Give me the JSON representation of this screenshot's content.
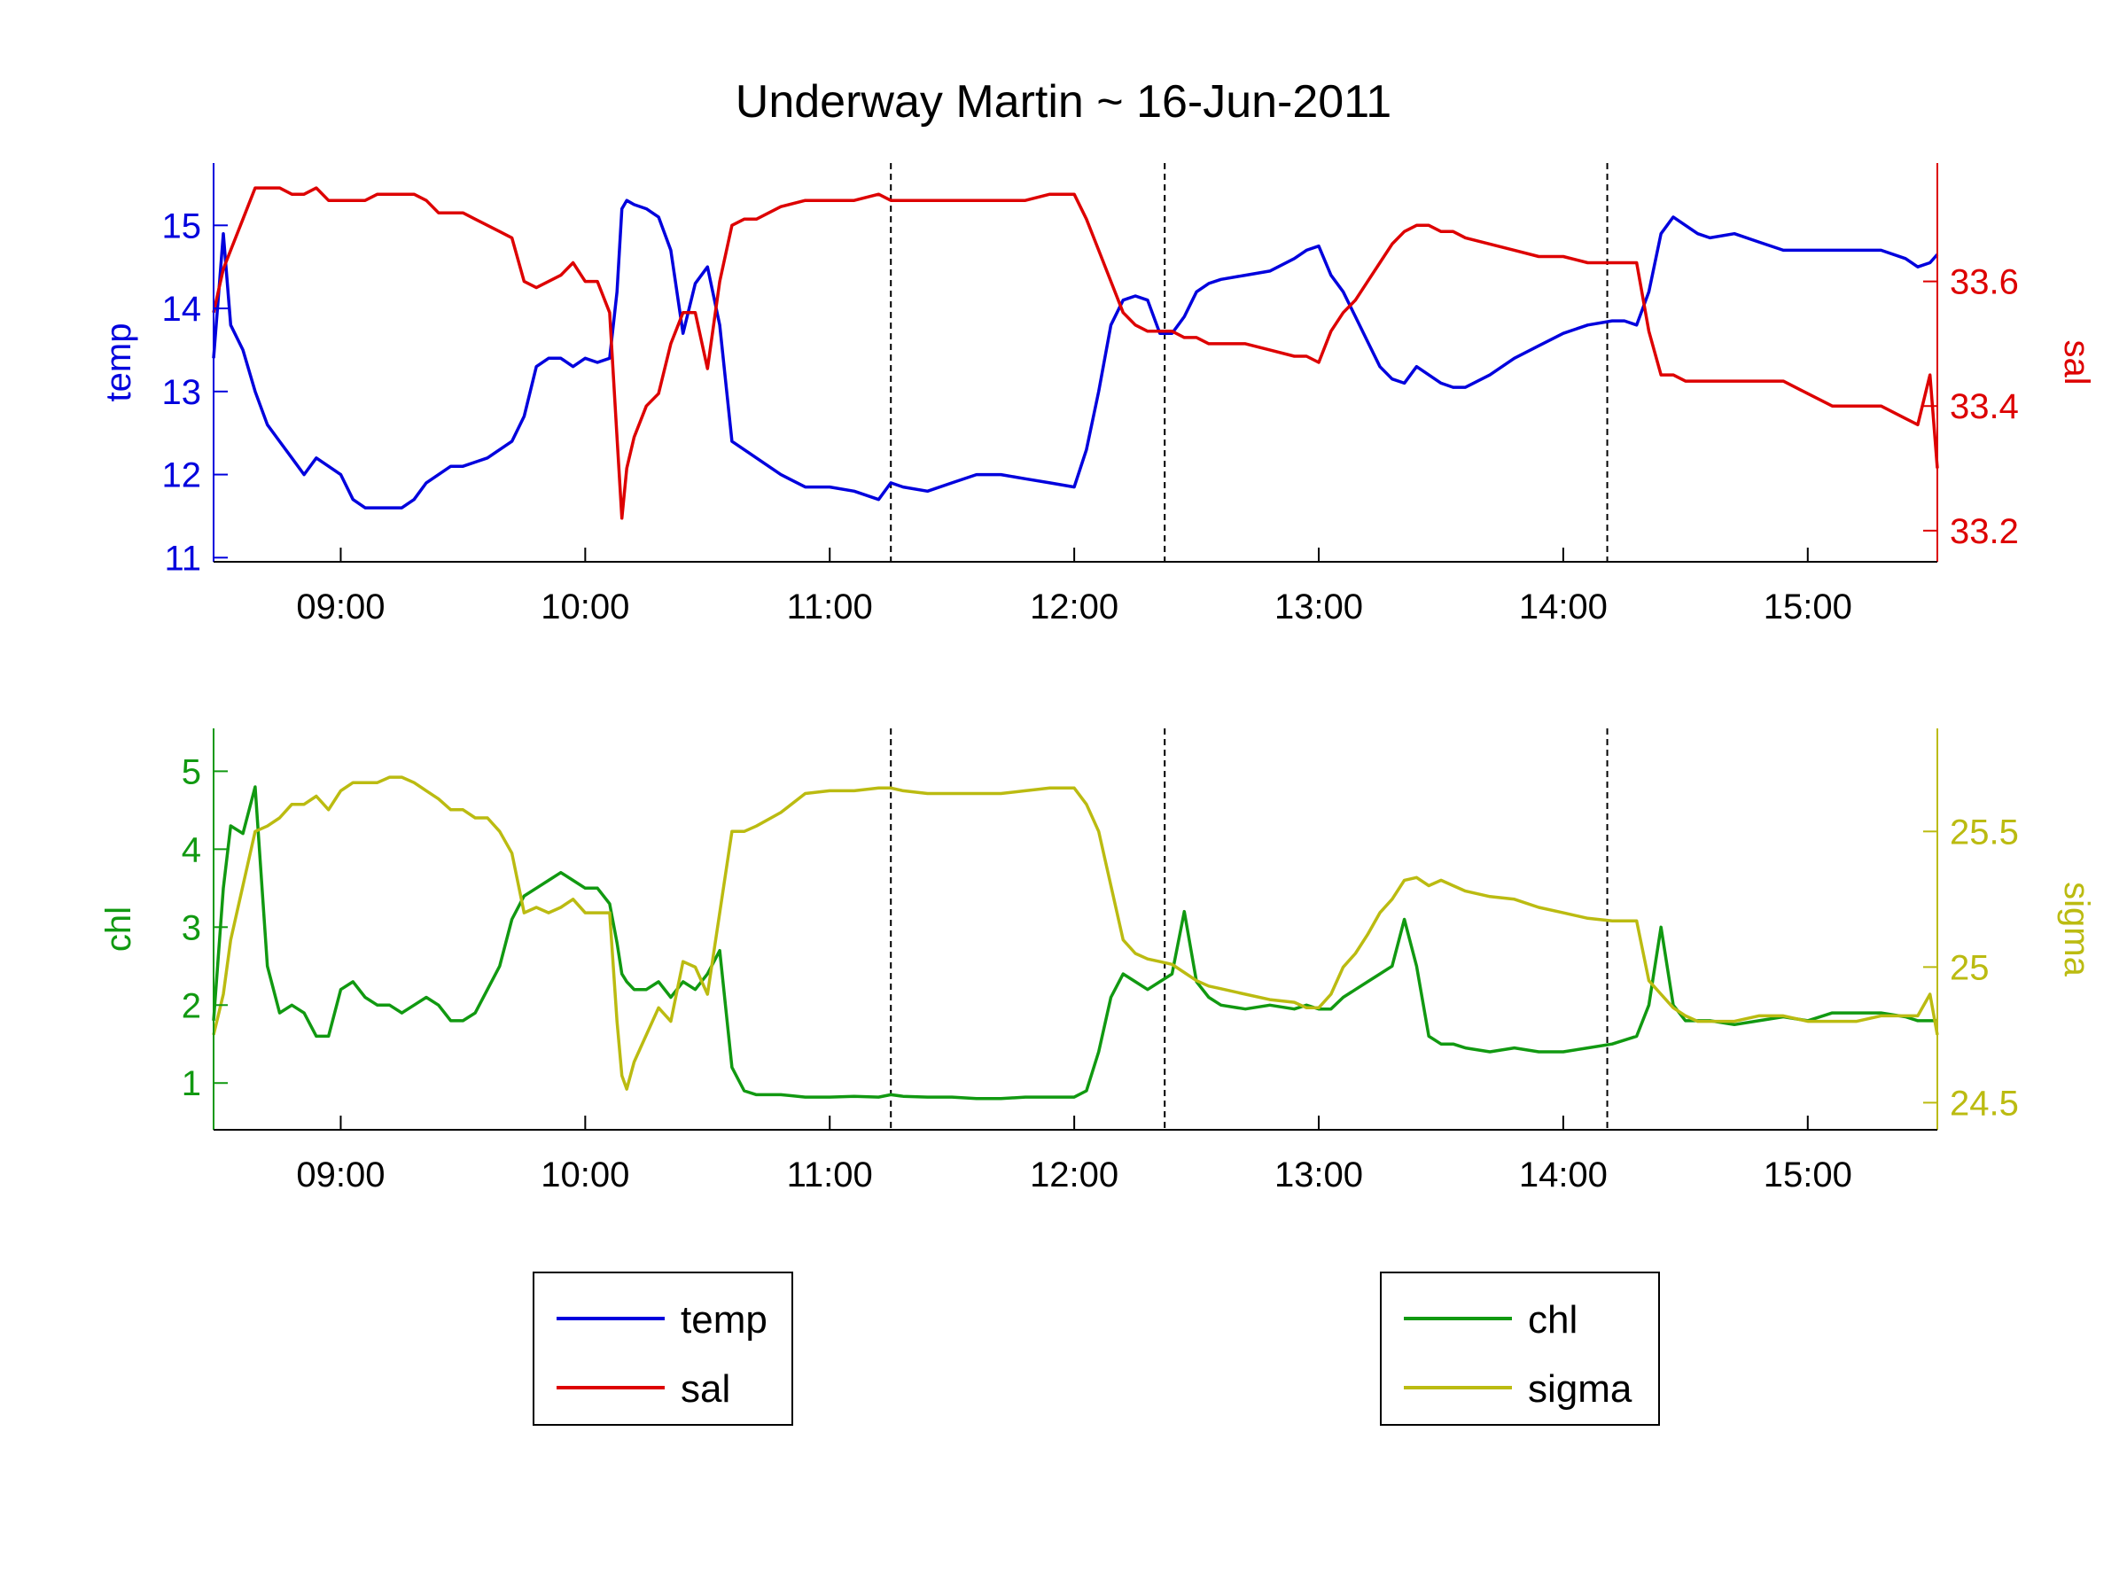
{
  "figure": {
    "title": "Underway Martin ~ 16-Jun-2011"
  },
  "chart_data": [
    {
      "type": "line",
      "panel": "top",
      "xlabel": "",
      "x_ticks": [
        "09:00",
        "10:00",
        "11:00",
        "12:00",
        "13:00",
        "14:00",
        "15:00"
      ],
      "x_tick_hours": [
        9,
        10,
        11,
        12,
        13,
        14,
        15
      ],
      "xlim": [
        8.48,
        15.53
      ],
      "station_lines": [
        11.25,
        12.37,
        14.18
      ],
      "grid": false,
      "left_axis": {
        "label": "temp",
        "color": "#0000dd",
        "ylim": [
          10.95,
          15.75
        ],
        "ticks": [
          11,
          12,
          13,
          14,
          15
        ]
      },
      "right_axis": {
        "label": "sal",
        "color": "#dd0000",
        "ylim": [
          33.15,
          33.79
        ],
        "ticks": [
          33.2,
          33.4,
          33.6
        ],
        "tick_labels": [
          "33.2",
          "33.4",
          "33.6"
        ]
      },
      "x": [
        8.48,
        8.52,
        8.55,
        8.6,
        8.65,
        8.7,
        8.75,
        8.8,
        8.85,
        8.9,
        8.95,
        9.0,
        9.05,
        9.1,
        9.15,
        9.2,
        9.25,
        9.3,
        9.35,
        9.4,
        9.45,
        9.5,
        9.55,
        9.6,
        9.65,
        9.7,
        9.75,
        9.8,
        9.85,
        9.9,
        9.95,
        10.0,
        10.05,
        10.1,
        10.13,
        10.15,
        10.17,
        10.2,
        10.25,
        10.3,
        10.35,
        10.4,
        10.45,
        10.5,
        10.55,
        10.6,
        10.65,
        10.7,
        10.8,
        10.9,
        11.0,
        11.1,
        11.2,
        11.25,
        11.3,
        11.4,
        11.5,
        11.6,
        11.7,
        11.8,
        11.9,
        12.0,
        12.05,
        12.1,
        12.15,
        12.2,
        12.25,
        12.3,
        12.35,
        12.4,
        12.45,
        12.5,
        12.55,
        12.6,
        12.7,
        12.8,
        12.9,
        12.95,
        13.0,
        13.05,
        13.1,
        13.15,
        13.2,
        13.25,
        13.3,
        13.35,
        13.4,
        13.45,
        13.5,
        13.55,
        13.6,
        13.7,
        13.8,
        13.9,
        14.0,
        14.1,
        14.2,
        14.25,
        14.3,
        14.35,
        14.4,
        14.45,
        14.5,
        14.55,
        14.6,
        14.7,
        14.8,
        14.9,
        15.0,
        15.1,
        15.2,
        15.3,
        15.4,
        15.45,
        15.5,
        15.53
      ],
      "series": [
        {
          "name": "temp",
          "axis": "left",
          "color": "#0000dd",
          "values": [
            13.4,
            14.9,
            13.8,
            13.5,
            13.0,
            12.6,
            12.4,
            12.2,
            12.0,
            12.2,
            12.1,
            12.0,
            11.7,
            11.6,
            11.6,
            11.6,
            11.6,
            11.7,
            11.9,
            12.0,
            12.1,
            12.1,
            12.15,
            12.2,
            12.3,
            12.4,
            12.7,
            13.3,
            13.4,
            13.4,
            13.3,
            13.4,
            13.35,
            13.4,
            14.2,
            15.2,
            15.3,
            15.25,
            15.2,
            15.1,
            14.7,
            13.7,
            14.3,
            14.5,
            13.8,
            12.4,
            12.3,
            12.2,
            12.0,
            11.85,
            11.85,
            11.8,
            11.7,
            11.9,
            11.85,
            11.8,
            11.9,
            12.0,
            12.0,
            11.95,
            11.9,
            11.85,
            12.3,
            13.0,
            13.8,
            14.1,
            14.15,
            14.1,
            13.7,
            13.7,
            13.9,
            14.2,
            14.3,
            14.35,
            14.4,
            14.45,
            14.6,
            14.7,
            14.75,
            14.4,
            14.2,
            13.9,
            13.6,
            13.3,
            13.15,
            13.1,
            13.3,
            13.2,
            13.1,
            13.05,
            13.05,
            13.2,
            13.4,
            13.55,
            13.7,
            13.8,
            13.85,
            13.85,
            13.8,
            14.2,
            14.9,
            15.1,
            15.0,
            14.9,
            14.85,
            14.9,
            14.8,
            14.7,
            14.7,
            14.7,
            14.7,
            14.7,
            14.6,
            14.5,
            14.55,
            14.65
          ]
        },
        {
          "name": "sal",
          "axis": "right",
          "color": "#dd0000",
          "values": [
            33.55,
            33.62,
            33.65,
            33.7,
            33.75,
            33.75,
            33.75,
            33.74,
            33.74,
            33.75,
            33.73,
            33.73,
            33.73,
            33.73,
            33.74,
            33.74,
            33.74,
            33.74,
            33.73,
            33.71,
            33.71,
            33.71,
            33.7,
            33.69,
            33.68,
            33.67,
            33.6,
            33.59,
            33.6,
            33.61,
            33.63,
            33.6,
            33.6,
            33.55,
            33.35,
            33.22,
            33.3,
            33.35,
            33.4,
            33.42,
            33.5,
            33.55,
            33.55,
            33.46,
            33.6,
            33.69,
            33.7,
            33.7,
            33.72,
            33.73,
            33.73,
            33.73,
            33.74,
            33.73,
            33.73,
            33.73,
            33.73,
            33.73,
            33.73,
            33.73,
            33.74,
            33.74,
            33.7,
            33.65,
            33.6,
            33.55,
            33.53,
            33.52,
            33.52,
            33.52,
            33.51,
            33.51,
            33.5,
            33.5,
            33.5,
            33.49,
            33.48,
            33.48,
            33.47,
            33.52,
            33.55,
            33.57,
            33.6,
            33.63,
            33.66,
            33.68,
            33.69,
            33.69,
            33.68,
            33.68,
            33.67,
            33.66,
            33.65,
            33.64,
            33.64,
            33.63,
            33.63,
            33.63,
            33.63,
            33.52,
            33.45,
            33.45,
            33.44,
            33.44,
            33.44,
            33.44,
            33.44,
            33.44,
            33.42,
            33.4,
            33.4,
            33.4,
            33.38,
            33.37,
            33.45,
            33.3
          ]
        }
      ]
    },
    {
      "type": "line",
      "panel": "bottom",
      "xlabel": "",
      "x_ticks": [
        "09:00",
        "10:00",
        "11:00",
        "12:00",
        "13:00",
        "14:00",
        "15:00"
      ],
      "x_tick_hours": [
        9,
        10,
        11,
        12,
        13,
        14,
        15
      ],
      "xlim": [
        8.48,
        15.53
      ],
      "station_lines": [
        11.25,
        12.37,
        14.18
      ],
      "grid": false,
      "left_axis": {
        "label": "chl",
        "color": "#119911",
        "ylim": [
          0.4,
          5.55
        ],
        "ticks": [
          1,
          2,
          3,
          4,
          5
        ]
      },
      "right_axis": {
        "label": "sigma",
        "color": "#bbbb11",
        "ylim": [
          24.4,
          25.88
        ],
        "ticks": [
          24.5,
          25,
          25.5
        ],
        "tick_labels": [
          "24.5",
          "25",
          "25.5"
        ]
      },
      "x": [
        8.48,
        8.52,
        8.55,
        8.6,
        8.65,
        8.7,
        8.75,
        8.8,
        8.85,
        8.9,
        8.95,
        9.0,
        9.05,
        9.1,
        9.15,
        9.2,
        9.25,
        9.3,
        9.35,
        9.4,
        9.45,
        9.5,
        9.55,
        9.6,
        9.65,
        9.7,
        9.75,
        9.8,
        9.85,
        9.9,
        9.95,
        10.0,
        10.05,
        10.1,
        10.13,
        10.15,
        10.17,
        10.2,
        10.25,
        10.3,
        10.35,
        10.4,
        10.45,
        10.5,
        10.55,
        10.6,
        10.65,
        10.7,
        10.8,
        10.9,
        11.0,
        11.1,
        11.2,
        11.25,
        11.3,
        11.4,
        11.5,
        11.6,
        11.7,
        11.8,
        11.9,
        12.0,
        12.05,
        12.1,
        12.15,
        12.2,
        12.25,
        12.3,
        12.35,
        12.4,
        12.45,
        12.5,
        12.55,
        12.6,
        12.7,
        12.8,
        12.9,
        12.95,
        13.0,
        13.05,
        13.1,
        13.15,
        13.2,
        13.25,
        13.3,
        13.35,
        13.4,
        13.45,
        13.5,
        13.55,
        13.6,
        13.7,
        13.8,
        13.9,
        14.0,
        14.1,
        14.2,
        14.25,
        14.3,
        14.35,
        14.4,
        14.45,
        14.5,
        14.55,
        14.6,
        14.7,
        14.8,
        14.9,
        15.0,
        15.1,
        15.2,
        15.3,
        15.4,
        15.45,
        15.5,
        15.53
      ],
      "series": [
        {
          "name": "chl",
          "axis": "left",
          "color": "#119911",
          "values": [
            1.8,
            3.5,
            4.3,
            4.2,
            4.8,
            2.5,
            1.9,
            2.0,
            1.9,
            1.6,
            1.6,
            2.2,
            2.3,
            2.1,
            2.0,
            2.0,
            1.9,
            2.0,
            2.1,
            2.0,
            1.8,
            1.8,
            1.9,
            2.2,
            2.5,
            3.1,
            3.4,
            3.5,
            3.6,
            3.7,
            3.6,
            3.5,
            3.5,
            3.3,
            2.8,
            2.4,
            2.3,
            2.2,
            2.2,
            2.3,
            2.1,
            2.3,
            2.2,
            2.4,
            2.7,
            1.2,
            0.9,
            0.85,
            0.85,
            0.82,
            0.82,
            0.83,
            0.82,
            0.85,
            0.83,
            0.82,
            0.82,
            0.8,
            0.8,
            0.82,
            0.82,
            0.82,
            0.9,
            1.4,
            2.1,
            2.4,
            2.3,
            2.2,
            2.3,
            2.4,
            3.2,
            2.3,
            2.1,
            2.0,
            1.95,
            2.0,
            1.95,
            2.0,
            1.95,
            1.95,
            2.1,
            2.2,
            2.3,
            2.4,
            2.5,
            3.1,
            2.5,
            1.6,
            1.5,
            1.5,
            1.45,
            1.4,
            1.45,
            1.4,
            1.4,
            1.45,
            1.5,
            1.55,
            1.6,
            2.0,
            3.0,
            2.0,
            1.8,
            1.8,
            1.8,
            1.75,
            1.8,
            1.85,
            1.8,
            1.9,
            1.9,
            1.9,
            1.85,
            1.8,
            1.8,
            1.8
          ]
        },
        {
          "name": "sigma",
          "axis": "right",
          "color": "#bbbb11",
          "values": [
            24.75,
            24.9,
            25.1,
            25.3,
            25.5,
            25.52,
            25.55,
            25.6,
            25.6,
            25.63,
            25.58,
            25.65,
            25.68,
            25.68,
            25.68,
            25.7,
            25.7,
            25.68,
            25.65,
            25.62,
            25.58,
            25.58,
            25.55,
            25.55,
            25.5,
            25.42,
            25.2,
            25.22,
            25.2,
            25.22,
            25.25,
            25.2,
            25.2,
            25.2,
            24.8,
            24.6,
            24.55,
            24.65,
            24.75,
            24.85,
            24.8,
            25.02,
            25.0,
            24.9,
            25.2,
            25.5,
            25.5,
            25.52,
            25.57,
            25.64,
            25.65,
            25.65,
            25.66,
            25.66,
            25.65,
            25.64,
            25.64,
            25.64,
            25.64,
            25.65,
            25.66,
            25.66,
            25.6,
            25.5,
            25.3,
            25.1,
            25.05,
            25.03,
            25.02,
            25.01,
            24.98,
            24.95,
            24.93,
            24.92,
            24.9,
            24.88,
            24.87,
            24.85,
            24.85,
            24.9,
            25.0,
            25.05,
            25.12,
            25.2,
            25.25,
            25.32,
            25.33,
            25.3,
            25.32,
            25.3,
            25.28,
            25.26,
            25.25,
            25.22,
            25.2,
            25.18,
            25.17,
            25.17,
            25.17,
            24.95,
            24.9,
            24.85,
            24.82,
            24.8,
            24.8,
            24.8,
            24.82,
            24.82,
            24.8,
            24.8,
            24.8,
            24.82,
            24.82,
            24.82,
            24.9,
            24.75
          ]
        }
      ]
    }
  ],
  "legends": [
    {
      "entries": [
        {
          "label": "temp",
          "color": "#0000dd"
        },
        {
          "label": "sal",
          "color": "#dd0000"
        }
      ]
    },
    {
      "entries": [
        {
          "label": "chl",
          "color": "#119911"
        },
        {
          "label": "sigma",
          "color": "#bbbb11"
        }
      ]
    }
  ]
}
